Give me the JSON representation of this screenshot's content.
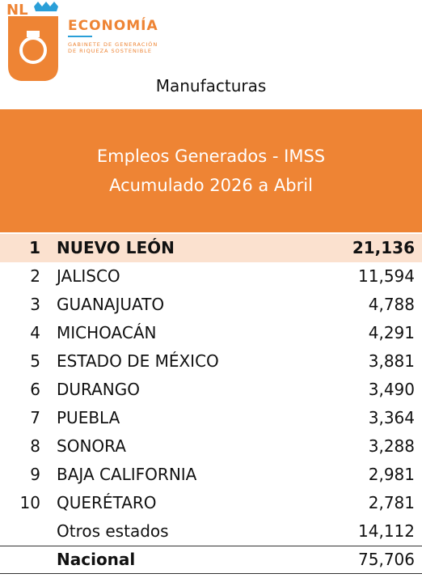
{
  "logo": {
    "mark": "NL",
    "title": "ECONOMÍA",
    "subtitle": [
      "GABINETE DE GENERACIÓN",
      "DE RIQUEZA SOSTENIBLE"
    ]
  },
  "heading": "Manufacturas",
  "banner": [
    "Empleos Generados - IMSS",
    "Acumulado 2026 a Abril"
  ],
  "table": {
    "rows": [
      {
        "rank": "1",
        "name": "NUEVO LEÓN",
        "value": "21,136"
      },
      {
        "rank": "2",
        "name": "JALISCO",
        "value": "11,594"
      },
      {
        "rank": "3",
        "name": "GUANAJUATO",
        "value": "4,788"
      },
      {
        "rank": "4",
        "name": "MICHOACÁN",
        "value": "4,291"
      },
      {
        "rank": "5",
        "name": "ESTADO DE MÉXICO",
        "value": "3,881"
      },
      {
        "rank": "6",
        "name": "DURANGO",
        "value": "3,490"
      },
      {
        "rank": "7",
        "name": "PUEBLA",
        "value": "3,364"
      },
      {
        "rank": "8",
        "name": "SONORA",
        "value": "3,288"
      },
      {
        "rank": "9",
        "name": "BAJA CALIFORNIA",
        "value": "2,981"
      },
      {
        "rank": "10",
        "name": "QUERÉTARO",
        "value": "2,781"
      },
      {
        "name": "Otros estados",
        "value": "14,112"
      }
    ],
    "total": {
      "name": "Nacional",
      "value": "75,706"
    }
  }
}
